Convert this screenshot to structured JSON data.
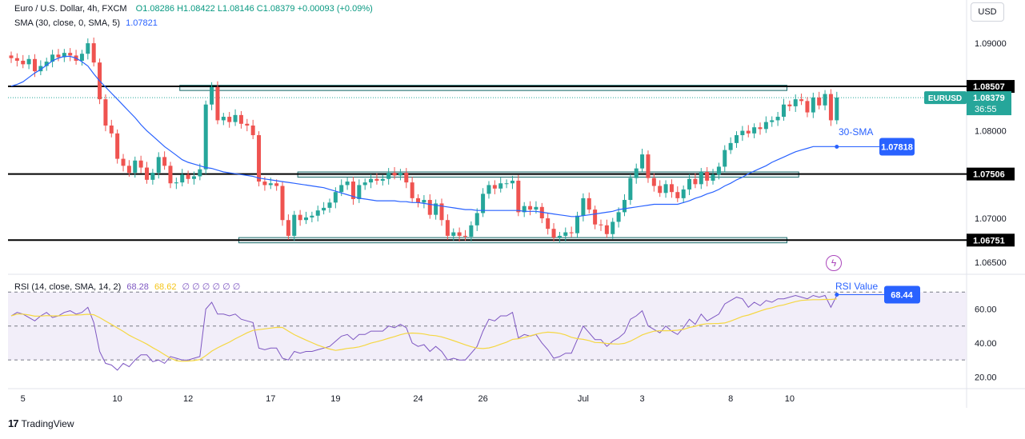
{
  "header": {
    "symbol": "Euro / U.S. Dollar, 4h, FXCM",
    "open": "O1.08286",
    "high": "H1.08422",
    "low": "L1.08146",
    "close": "C1.08379",
    "change": "+0.00093 (+0.09%)",
    "sma_label": "SMA (30, close, 0, SMA, 5)",
    "sma_value": "1.07821",
    "rsi_label": "RSI (14, close, SMA, 14, 2)",
    "rsi_value": "68.28",
    "rsi_sma_value": "68.62",
    "rsi_extra": "∅ ∅ ∅ ∅ ∅ ∅"
  },
  "currency_button": "USD",
  "footer": {
    "brand": "TradingView"
  },
  "colors": {
    "up": "#26a69a",
    "down": "#ef5350",
    "sma": "#2962ff",
    "rsi": "#7e57c2",
    "rsi_ma": "#f5d742",
    "zone": "#1e6e6e"
  },
  "chart_data": {
    "type": "candlestick",
    "price_axis_ticks": [
      "1.09000",
      "1.08000",
      "1.07000",
      "1.06500"
    ],
    "price_axis_tick_values": [
      1.09,
      1.08,
      1.07,
      1.065
    ],
    "price_range": [
      1.0637,
      1.0922
    ],
    "x_tick_labels": [
      "5",
      "10",
      "12",
      "17",
      "19",
      "24",
      "26",
      "Jul",
      "3",
      "8",
      "10"
    ],
    "x_tick_index": [
      2,
      18,
      30,
      44,
      55,
      69,
      80,
      97,
      107,
      122,
      132
    ],
    "levels": [
      {
        "name": "resistance",
        "value": 1.08507,
        "label": "1.08507"
      },
      {
        "name": "middle",
        "value": 1.07506,
        "label": "1.07506"
      },
      {
        "name": "support",
        "value": 1.06751,
        "label": "1.06751"
      }
    ],
    "zones": [
      {
        "from": 1.0846,
        "to": 1.0852,
        "start": 29,
        "end": 131
      },
      {
        "from": 1.0747,
        "to": 1.0753,
        "start": 49,
        "end": 133
      },
      {
        "from": 1.0672,
        "to": 1.0678,
        "start": 39,
        "end": 131
      }
    ],
    "current_price": {
      "symbol": "EURUSD",
      "value": 1.08379,
      "label": "1.08379",
      "countdown": "36:55"
    },
    "sma_annotation": {
      "label": "30-SMA",
      "value": 1.07818,
      "value_label": "1.07818"
    },
    "rsi": {
      "ticks": [
        "60.00",
        "40.00",
        "20.00"
      ],
      "tick_values": [
        60,
        40,
        20
      ],
      "range": [
        15,
        80
      ],
      "bands": [
        70,
        50,
        30
      ],
      "annotation": {
        "label": "RSI Value",
        "value": 68.44,
        "value_label": "68.44"
      }
    },
    "close_path": [
      1.0883,
      1.088,
      1.0876,
      1.0882,
      1.0868,
      1.0874,
      1.0879,
      1.0887,
      1.0884,
      1.0889,
      1.0886,
      1.088,
      1.0888,
      1.09,
      1.0878,
      1.0836,
      1.0806,
      1.0797,
      1.0768,
      1.076,
      1.0752,
      1.0766,
      1.0758,
      1.0744,
      1.0752,
      1.077,
      1.076,
      1.074,
      1.0741,
      1.075,
      1.0745,
      1.0748,
      1.0756,
      1.083,
      1.085,
      1.0812,
      1.0816,
      1.081,
      1.0818,
      1.0808,
      1.0806,
      1.0795,
      1.0742,
      1.0738,
      1.074,
      1.0737,
      1.0698,
      1.068,
      1.0704,
      1.0698,
      1.0701,
      1.0703,
      1.0709,
      1.0712,
      1.0718,
      1.073,
      1.0738,
      1.0742,
      1.0722,
      1.0738,
      1.0741,
      1.0745,
      1.0743,
      1.0745,
      1.0752,
      1.0749,
      1.0752,
      1.0741,
      1.0723,
      1.0718,
      1.0721,
      1.0704,
      1.0717,
      1.0698,
      1.068,
      1.0684,
      1.068,
      1.0679,
      1.0692,
      1.0706,
      1.0728,
      1.0738,
      1.0734,
      1.074,
      1.074,
      1.0743,
      1.0707,
      1.0714,
      1.071,
      1.0713,
      1.07,
      1.0688,
      1.0678,
      1.068,
      1.0684,
      1.0683,
      1.0703,
      1.0723,
      1.071,
      1.0693,
      1.0692,
      1.0682,
      1.0696,
      1.0707,
      1.0721,
      1.0746,
      1.0757,
      1.0773,
      1.0746,
      1.0737,
      1.0729,
      1.0739,
      1.073,
      1.0723,
      1.0733,
      1.0745,
      1.0739,
      1.0753,
      1.0743,
      1.075,
      1.0759,
      1.0778,
      1.0786,
      1.0795,
      1.08,
      1.0797,
      1.0804,
      1.0802,
      1.081,
      1.0812,
      1.0816,
      1.083,
      1.0828,
      1.0836,
      1.0834,
      1.0821,
      1.0838,
      1.0829,
      1.0842,
      1.0812,
      1.0838
    ],
    "sma_path": [
      1.0851,
      1.0853,
      1.0856,
      1.0861,
      1.0866,
      1.087,
      1.0875,
      1.088,
      1.0883,
      1.0885,
      1.0885,
      1.0883,
      1.0879,
      1.0874,
      1.0865,
      1.0857,
      1.085,
      1.0843,
      1.0836,
      1.0829,
      1.0822,
      1.0815,
      1.0807,
      1.08,
      1.0794,
      1.0788,
      1.0782,
      1.0777,
      1.0772,
      1.0767,
      1.0764,
      1.0762,
      1.076,
      1.0758,
      1.0757,
      1.0755,
      1.0753,
      1.0752,
      1.0751,
      1.075,
      1.0749,
      1.0748,
      1.0746,
      1.0745,
      1.0744,
      1.0743,
      1.0742,
      1.0741,
      1.074,
      1.0739,
      1.0738,
      1.0737,
      1.0736,
      1.0735,
      1.0733,
      1.0731,
      1.0729,
      1.0727,
      1.0725,
      1.0723,
      1.0722,
      1.0721,
      1.072,
      1.072,
      1.072,
      1.072,
      1.0719,
      1.0719,
      1.0718,
      1.0718,
      1.0717,
      1.0716,
      1.0715,
      1.0714,
      1.0713,
      1.0712,
      1.0711,
      1.071,
      1.071,
      1.0709,
      1.0709,
      1.0709,
      1.0709,
      1.0709,
      1.0709,
      1.0709,
      1.0709,
      1.0708,
      1.0708,
      1.0708,
      1.0707,
      1.0706,
      1.0705,
      1.0704,
      1.0703,
      1.0702,
      1.0702,
      1.0703,
      1.0704,
      1.0705,
      1.0706,
      1.0707,
      1.0708,
      1.071,
      1.0711,
      1.0712,
      1.0713,
      1.0714,
      1.0715,
      1.0716,
      1.0716,
      1.0716,
      1.0716,
      1.0716,
      1.0718,
      1.072,
      1.0723,
      1.0725,
      1.0728,
      1.073,
      1.0733,
      1.0737,
      1.074,
      1.0744,
      1.0747,
      1.0751,
      1.0754,
      1.0757,
      1.076,
      1.0764,
      1.0767,
      1.077,
      1.0773,
      1.0776,
      1.0778,
      1.078,
      1.0782,
      1.0782,
      1.0782,
      1.0782,
      1.0782
    ],
    "rsi_path": [
      56,
      58,
      57,
      55,
      53,
      56,
      58,
      55,
      56,
      58,
      59,
      57,
      58,
      61,
      52,
      35,
      28,
      27,
      24,
      28,
      26,
      30,
      33,
      33,
      29,
      30,
      28,
      32,
      31,
      30,
      30,
      31,
      32,
      60,
      64,
      57,
      57,
      56,
      57,
      54,
      53,
      52,
      37,
      36,
      37,
      37,
      31,
      30,
      35,
      34,
      35,
      35,
      36,
      37,
      38,
      41,
      44,
      45,
      42,
      45,
      45,
      47,
      47,
      47,
      50,
      49,
      51,
      49,
      40,
      38,
      39,
      35,
      38,
      35,
      30,
      31,
      30,
      30,
      34,
      38,
      47,
      54,
      53,
      56,
      56,
      58,
      43,
      45,
      44,
      45,
      40,
      36,
      31,
      32,
      34,
      34,
      42,
      50,
      46,
      42,
      42,
      38,
      41,
      43,
      46,
      54,
      56,
      59,
      50,
      48,
      46,
      50,
      47,
      45,
      49,
      54,
      51,
      57,
      53,
      55,
      57,
      63,
      65,
      67,
      66,
      61,
      64,
      62,
      65,
      64,
      66,
      66,
      67,
      68,
      67,
      66,
      68,
      67,
      68,
      61,
      68
    ]
  }
}
